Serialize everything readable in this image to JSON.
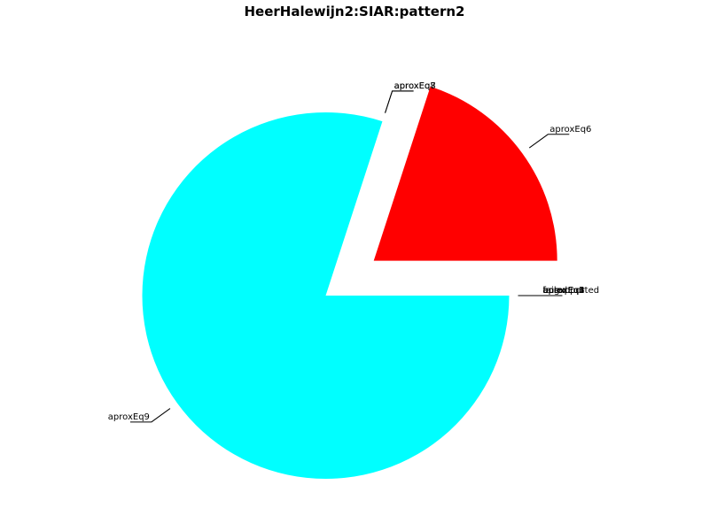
{
  "chart_data": {
    "type": "pie",
    "title": "HeerHalewijn2:SIAR:pattern2",
    "slices": [
      {
        "label": "aproxEq6",
        "value": 20,
        "color": "#ff0000",
        "exploded": true
      },
      {
        "label": "aproxEq7",
        "value": 0,
        "color": "#000000",
        "exploded": false
      },
      {
        "label": "aproxEq8",
        "value": 0,
        "color": "#000000",
        "exploded": false
      },
      {
        "label": "aproxEq9",
        "value": 80,
        "color": "#00ffff",
        "exploded": false
      },
      {
        "label": "unsupported",
        "value": 0,
        "color": "#000000",
        "exploded": false
      },
      {
        "label": "bug",
        "value": 0,
        "color": "#000000",
        "exploded": false
      },
      {
        "label": "aproxEq1",
        "value": 0,
        "color": "#000000",
        "exploded": false
      },
      {
        "label": "aproxEq2",
        "value": 0,
        "color": "#000000",
        "exploded": false
      },
      {
        "label": "aproxEq3",
        "value": 0,
        "color": "#000000",
        "exploded": false
      },
      {
        "label": "aproxEq4",
        "value": 0,
        "color": "#000000",
        "exploded": false
      },
      {
        "label": "aproxEq5",
        "value": 0,
        "color": "#000000",
        "exploded": false
      },
      {
        "label": "failed",
        "value": 0,
        "color": "#000000",
        "exploded": false
      }
    ]
  }
}
